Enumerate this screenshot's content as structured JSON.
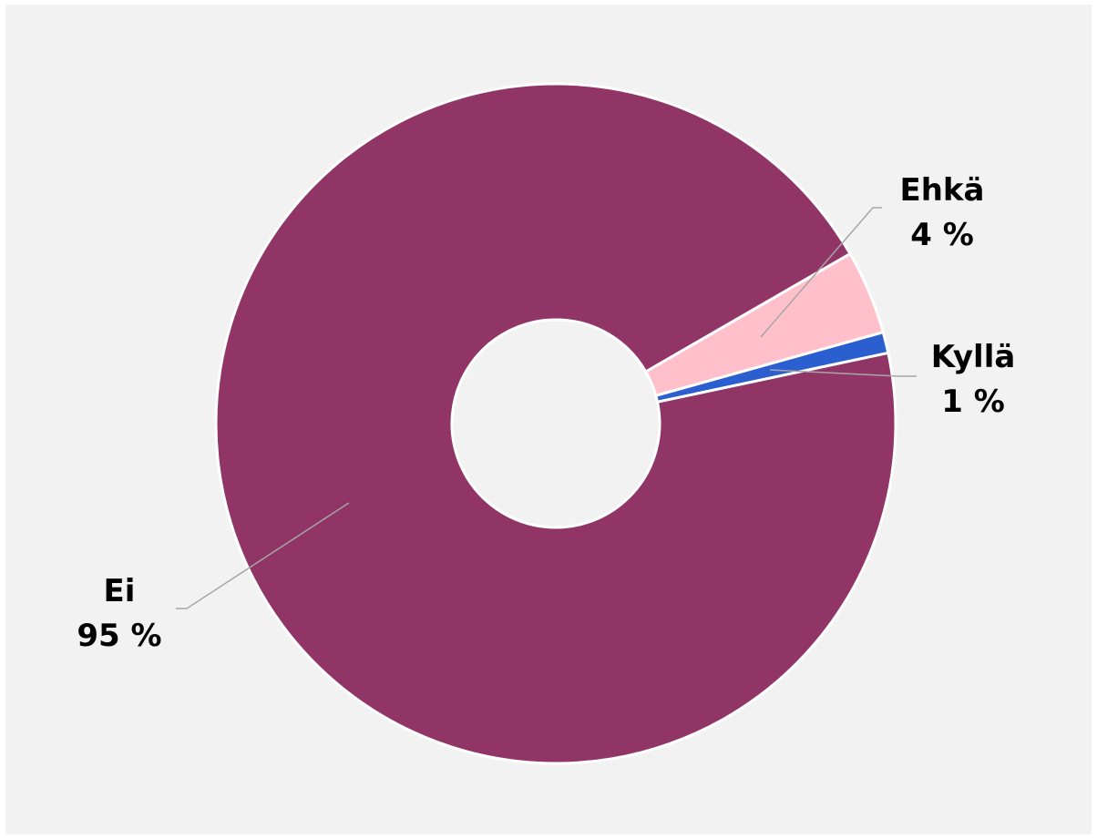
{
  "chart_data": {
    "type": "pie",
    "title": "",
    "slices": [
      {
        "label": "Ehkä",
        "value": 4,
        "value_label": "4 %",
        "color": "#ffc0cb"
      },
      {
        "label": "Kyllä",
        "value": 1,
        "value_label": "1 %",
        "color": "#2b5fd0"
      },
      {
        "label": "Ei",
        "value": 95,
        "value_label": "95 %",
        "color": "#903566"
      }
    ],
    "donut": true,
    "legend": "none",
    "leader_line_color": "#a6a6a6",
    "background": "#f2f2f2"
  }
}
